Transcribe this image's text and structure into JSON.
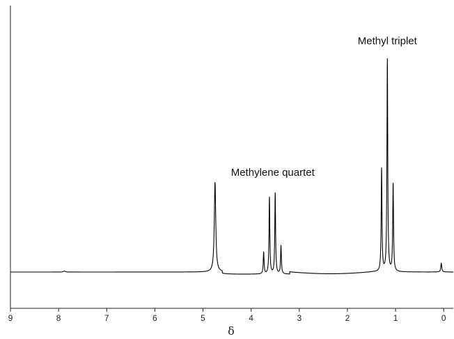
{
  "chart_data": {
    "type": "line",
    "title": "",
    "xlabel": "δ",
    "ylabel": "",
    "xlim": [
      9,
      -0.2
    ],
    "ylim": [
      -0.1,
      1.0
    ],
    "x_reversed": true,
    "x_ticks": [
      9,
      8,
      7,
      6,
      5,
      4,
      3,
      2,
      1,
      0
    ],
    "x_tick_labels": [
      "9",
      "8",
      "7",
      "6",
      "5",
      "4",
      "3",
      "2",
      "1",
      "0"
    ],
    "grid": false,
    "legend": "none",
    "line_color": "#000000",
    "baseline": 0,
    "peaks": [
      {
        "x": 7.88,
        "height": 0.005,
        "width": 0.02
      },
      {
        "x": 4.75,
        "height": 0.41,
        "width": 0.018
      },
      {
        "x": 3.74,
        "height": 0.1,
        "width": 0.01
      },
      {
        "x": 3.62,
        "height": 0.35,
        "width": 0.01
      },
      {
        "x": 3.5,
        "height": 0.37,
        "width": 0.01
      },
      {
        "x": 3.38,
        "height": 0.13,
        "width": 0.01
      },
      {
        "x": 1.29,
        "height": 0.47,
        "width": 0.01
      },
      {
        "x": 1.17,
        "height": 0.97,
        "width": 0.01
      },
      {
        "x": 1.05,
        "height": 0.4,
        "width": 0.01
      },
      {
        "x": 0.05,
        "height": 0.04,
        "width": 0.012
      }
    ],
    "annotations": [
      {
        "text": "Methylene quartet",
        "x": 3.55,
        "y": 0.44
      },
      {
        "text": "Methyl triplet",
        "x": 1.17,
        "y": 1.04
      }
    ]
  }
}
